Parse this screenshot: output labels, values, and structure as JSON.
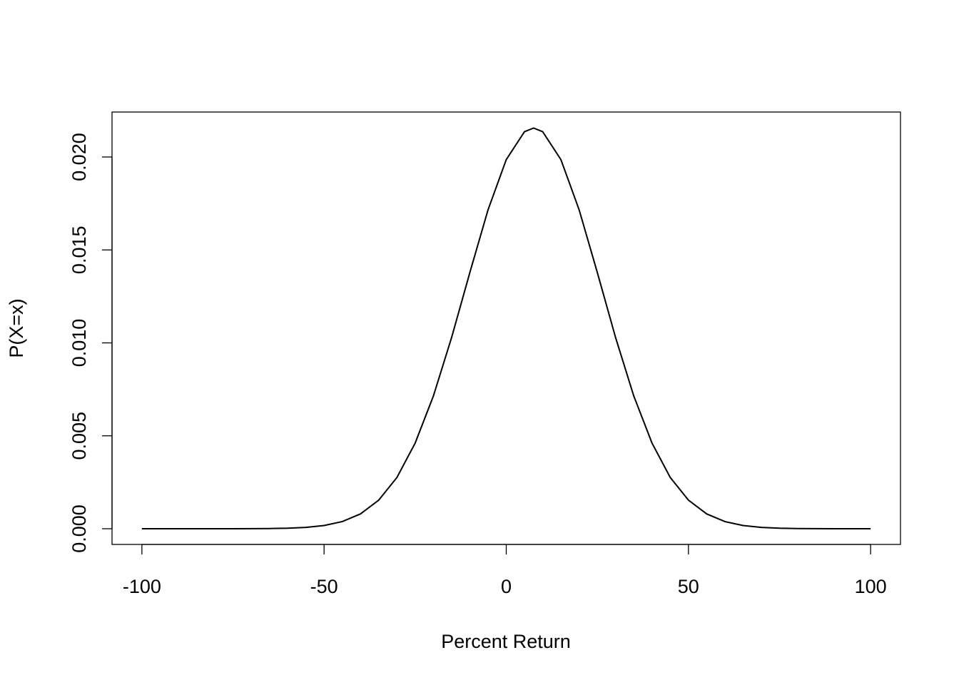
{
  "chart_data": {
    "type": "line",
    "x_label": "Percent Return",
    "y_label": "P(X=x)",
    "x": [
      -100,
      -95,
      -90,
      -85,
      -80,
      -75,
      -70,
      -65,
      -60,
      -55,
      -50,
      -45,
      -40,
      -35,
      -30,
      -25,
      -20,
      -15,
      -10,
      -5,
      0,
      5,
      7.5,
      10,
      15,
      20,
      25,
      30,
      35,
      40,
      45,
      50,
      55,
      60,
      65,
      70,
      75,
      80,
      85,
      90,
      95,
      100
    ],
    "series": [
      {
        "color": "#000000",
        "values": [
          0,
          0,
          0,
          0,
          3e-07,
          1e-06,
          3.3e-06,
          9.9e-06,
          2.8e-05,
          7.2e-05,
          0.000172,
          0.000385,
          0.000798,
          0.00154,
          0.00276,
          0.00461,
          0.00714,
          0.01029,
          0.01378,
          0.01716,
          0.01986,
          0.02136,
          0.02156,
          0.02136,
          0.01986,
          0.01716,
          0.01378,
          0.01029,
          0.00714,
          0.00461,
          0.00276,
          0.00154,
          0.000798,
          0.000385,
          0.000172,
          7.2e-05,
          2.8e-05,
          9.9e-06,
          3.3e-06,
          1e-06,
          3e-07,
          1e-07
        ]
      }
    ],
    "xlim": [
      -108.2,
      108.2
    ],
    "xticks": [
      -100,
      -50,
      0,
      50,
      100
    ],
    "ylim": [
      -0.000845,
      0.02242
    ],
    "yticks": [
      {
        "value": 0,
        "label": "0.000"
      },
      {
        "value": 0.005,
        "label": "0.005"
      },
      {
        "value": 0.01,
        "label": "0.010"
      },
      {
        "value": 0.015,
        "label": "0.015"
      },
      {
        "value": 0.02,
        "label": "0.020"
      }
    ]
  }
}
